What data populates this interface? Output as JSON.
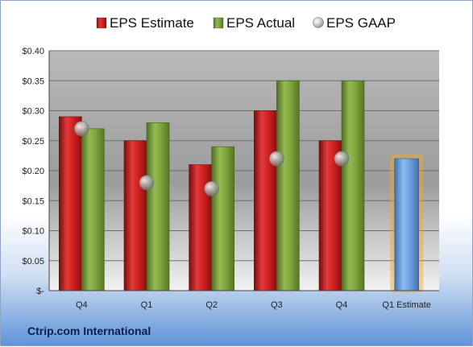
{
  "company": "Ctrip.com International",
  "colors": {
    "estimate": "#cc1f1f",
    "actual": "#7aa23a",
    "gaap": "#b4b4b4",
    "forecast": "#6a9fde",
    "forecast_glow": "#f5a623"
  },
  "chart_data": {
    "type": "bar",
    "categories": [
      "Q4",
      "Q1",
      "Q2",
      "Q3",
      "Q4",
      "Q1 Estimate"
    ],
    "series": [
      {
        "name": "EPS Estimate",
        "values": [
          0.29,
          0.25,
          0.21,
          0.3,
          0.25,
          null
        ]
      },
      {
        "name": "EPS Actual",
        "values": [
          0.27,
          0.28,
          0.24,
          0.35,
          0.35,
          null
        ]
      },
      {
        "name": "EPS GAAP",
        "values": [
          0.27,
          0.18,
          0.17,
          0.22,
          0.22,
          null
        ]
      }
    ],
    "forecast": {
      "category": "Q1 Estimate",
      "value": 0.22
    },
    "ylim": [
      0,
      0.4
    ],
    "yticks": [
      0,
      0.05,
      0.1,
      0.15,
      0.2,
      0.25,
      0.3,
      0.35,
      0.4
    ],
    "ytick_labels": [
      "$-",
      "$0.05",
      "$0.10",
      "$0.15",
      "$0.20",
      "$0.25",
      "$0.30",
      "$0.35",
      "$0.40"
    ],
    "grid": true,
    "legend_position": "top"
  }
}
